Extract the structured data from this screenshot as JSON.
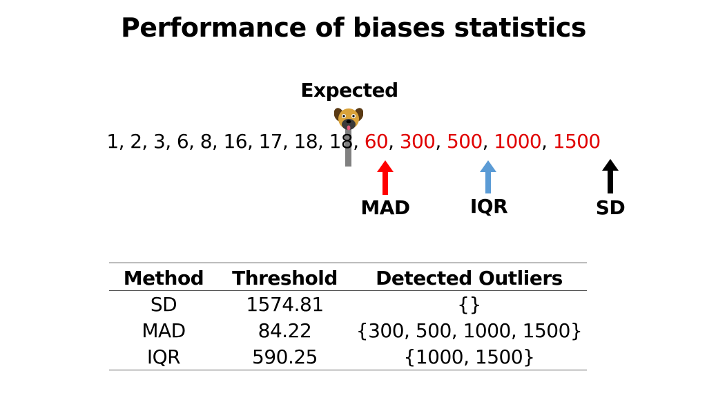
{
  "title": "Performance of biases statistics",
  "expected_label": "Expected",
  "marker_icon": "dog-icon",
  "sequence": {
    "normal": [
      "1",
      "2",
      "3",
      "6",
      "8",
      "16",
      "17",
      "18",
      "18"
    ],
    "outliers": [
      "60",
      "300",
      "500",
      "1000",
      "1500"
    ],
    "separator": ", ",
    "normal_color": "#000000",
    "outlier_color": "#e00000"
  },
  "arrows": [
    {
      "label": "MAD",
      "color": "#ff0000"
    },
    {
      "label": "IQR",
      "color": "#5b9bd5"
    },
    {
      "label": "SD",
      "color": "#000000"
    }
  ],
  "table": {
    "headers": [
      "Method",
      "Threshold",
      "Detected Outliers"
    ],
    "rows": [
      [
        "SD",
        "1574.81",
        "{}"
      ],
      [
        "MAD",
        "84.22",
        "{300, 500, 1000, 1500}"
      ],
      [
        "IQR",
        "590.25",
        "{1000, 1500}"
      ]
    ]
  }
}
